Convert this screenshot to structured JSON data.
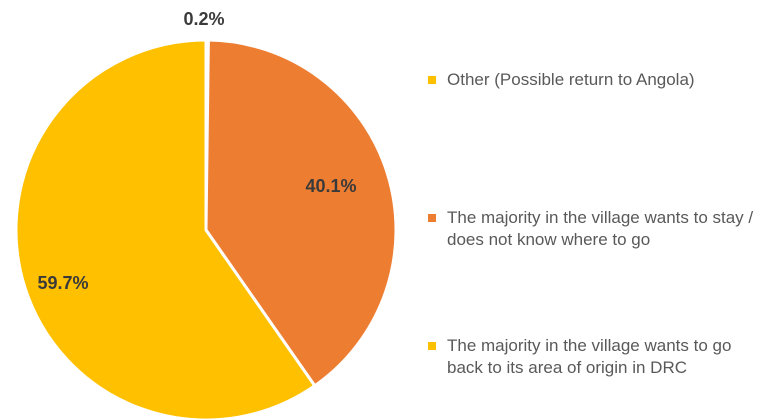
{
  "chart_data": {
    "type": "pie",
    "slices": [
      {
        "label": "Other (Possible return to Angola)",
        "value": 0.2,
        "display": "0.2%",
        "color": "#FFC000"
      },
      {
        "label": "The majority in the village wants to stay / does not know where to go",
        "value": 40.1,
        "display": "40.1%",
        "color": "#ED7D31"
      },
      {
        "label": "The majority in the village wants to go back to its area of origin in DRC",
        "value": 59.7,
        "display": "59.7%",
        "color": "#FFC000"
      }
    ],
    "legend_position": "right"
  }
}
